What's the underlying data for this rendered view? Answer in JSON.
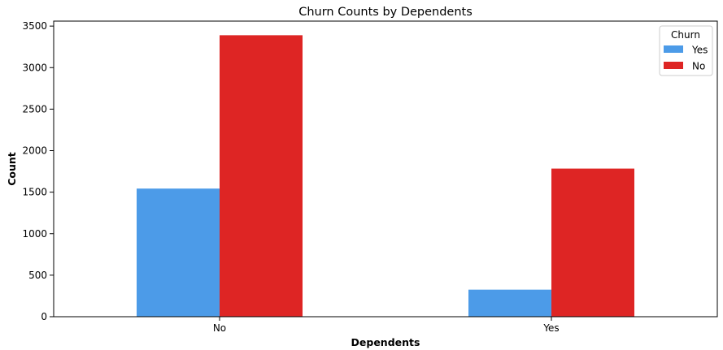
{
  "chart_data": {
    "type": "bar",
    "title": "Churn Counts by Dependents",
    "xlabel": "Dependents",
    "ylabel": "Count",
    "categories": [
      "No",
      "Yes"
    ],
    "series": [
      {
        "name": "Yes",
        "values": [
          1543,
          326
        ],
        "color": "#4c9be8"
      },
      {
        "name": "No",
        "values": [
          3390,
          1784
        ],
        "color": "#de2524"
      }
    ],
    "ylim": [
      0,
      3560
    ],
    "yticks": [
      0,
      500,
      1000,
      1500,
      2000,
      2500,
      3000,
      3500
    ],
    "grid": false,
    "legend": {
      "title": "Churn",
      "placement": "top-right"
    }
  }
}
